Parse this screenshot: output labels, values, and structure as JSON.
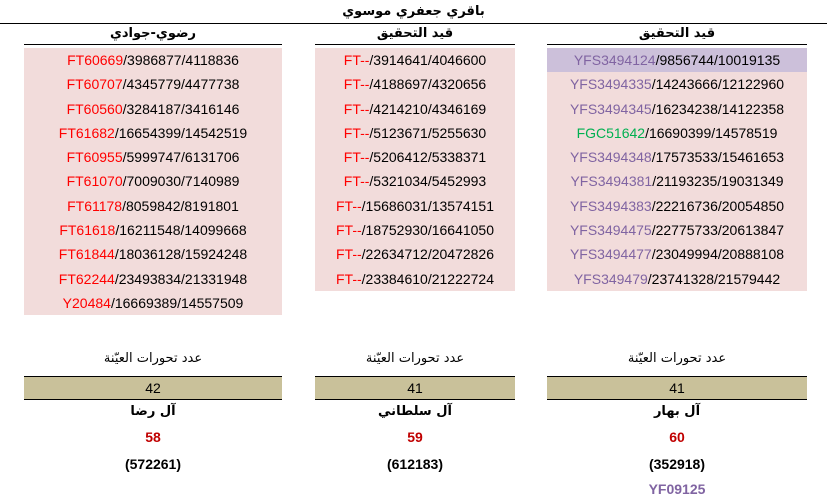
{
  "title": "باقري جعفري موسوي",
  "columns": [
    {
      "header": "رضوي-جوادي",
      "rows": [
        {
          "prefix": "FT60669",
          "rest": "/3986877/4118836"
        },
        {
          "prefix": "FT60707",
          "rest": "/4345779/4477738"
        },
        {
          "prefix": "FT60560",
          "rest": "/3284187/3416146"
        },
        {
          "prefix": "FT61682",
          "rest": "/16654399/14542519"
        },
        {
          "prefix": "FT60955",
          "rest": "/5999747/6131706"
        },
        {
          "prefix": "FT61070",
          "rest": "/7009030/7140989"
        },
        {
          "prefix": "FT61178",
          "rest": "/8059842/8191801"
        },
        {
          "prefix": "FT61618",
          "rest": "/16211548/14099668"
        },
        {
          "prefix": "FT61844",
          "rest": "/18036128/15924248"
        },
        {
          "prefix": "FT62244",
          "rest": "/23493834/21331948"
        },
        {
          "prefix": "Y20484",
          "rest": "/16669389/14557509"
        }
      ],
      "mutations_label": "عدد تحورات العيّنة",
      "mutations": "42",
      "family": "آل رضا",
      "count": "58",
      "paren": "(572261)"
    },
    {
      "header": "قيد التحقيق",
      "rows": [
        {
          "prefix": "FT--",
          "rest": "/3914641/4046600"
        },
        {
          "prefix": "FT--",
          "rest": "/4188697/4320656"
        },
        {
          "prefix": "FT--",
          "rest": "/4214210/4346169"
        },
        {
          "prefix": "FT--",
          "rest": "/5123671/5255630"
        },
        {
          "prefix": "FT--",
          "rest": "/5206412/5338371"
        },
        {
          "prefix": "FT--",
          "rest": "/5321034/5452993"
        },
        {
          "prefix": "FT--",
          "rest": "/15686031/13574151"
        },
        {
          "prefix": "FT--",
          "rest": "/18752930/16641050"
        },
        {
          "prefix": "FT--",
          "rest": "/22634712/20472826"
        },
        {
          "prefix": "FT--",
          "rest": "/23384610/21222724"
        }
      ],
      "mutations_label": "عدد تحورات العيّنة",
      "mutations": "41",
      "family": "آل سلطاني",
      "count": "59",
      "paren": "(612183)"
    },
    {
      "header": "قيد التحقيق",
      "rows": [
        {
          "prefix": "YFS3494124",
          "rest": "/9856744/10019135"
        },
        {
          "prefix": "YFS3494335",
          "rest": "/14243666/12122960"
        },
        {
          "prefix": "YFS3494345",
          "rest": "/16234238/14122358"
        },
        {
          "prefix": "FGC51642",
          "rest": "/16690399/14578519"
        },
        {
          "prefix": "YFS3494348",
          "rest": "/17573533/15461653"
        },
        {
          "prefix": "YFS3494381",
          "rest": "/21193235/19031349"
        },
        {
          "prefix": "YFS3494383",
          "rest": "/22216736/20054850"
        },
        {
          "prefix": "YFS3494475",
          "rest": "/22775733/20613847"
        },
        {
          "prefix": "YFS3494477",
          "rest": "/23049994/20888108"
        },
        {
          "prefix": "YFS349479",
          "rest": "/23741328/21579442"
        }
      ],
      "mutations_label": "عدد تحورات العيّنة",
      "mutations": "41",
      "family": "آل بهار",
      "count": "60",
      "paren": "(352918)",
      "extra": "YF09125"
    }
  ],
  "colors": {
    "row_bg": "#f2dcdb",
    "row_highlight": "#ccc0da",
    "prefix_red": "#ff0000",
    "prefix_purple": "#8064a2",
    "prefix_green": "#00b050",
    "count_red": "#c00000",
    "stat_bg": "#c9c19a"
  }
}
